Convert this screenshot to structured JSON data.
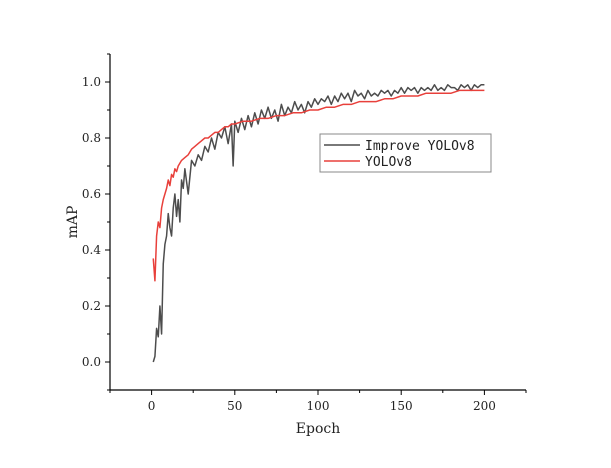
{
  "chart_data": {
    "type": "line",
    "xlabel": "Epoch",
    "ylabel": "mAP",
    "xlim": [
      -25,
      225
    ],
    "ylim": [
      -0.1,
      1.1
    ],
    "xticks": [
      0,
      50,
      100,
      150,
      200
    ],
    "yticks": [
      0.0,
      0.2,
      0.4,
      0.6,
      0.8,
      1.0
    ],
    "xtick_labels": [
      "0",
      "50",
      "100",
      "150",
      "200"
    ],
    "ytick_labels": [
      "0.0",
      "0.2",
      "0.4",
      "0.6",
      "0.8",
      "1.0"
    ],
    "grid": false,
    "legend_position": "upper-right-center",
    "series": [
      {
        "name": "Improve YOLOv8",
        "color": "#4d4d4d",
        "points": [
          [
            1,
            0.0
          ],
          [
            2,
            0.02
          ],
          [
            3,
            0.12
          ],
          [
            4,
            0.09
          ],
          [
            5,
            0.2
          ],
          [
            6,
            0.1
          ],
          [
            7,
            0.35
          ],
          [
            8,
            0.42
          ],
          [
            9,
            0.45
          ],
          [
            10,
            0.53
          ],
          [
            11,
            0.48
          ],
          [
            12,
            0.45
          ],
          [
            13,
            0.55
          ],
          [
            14,
            0.6
          ],
          [
            15,
            0.52
          ],
          [
            16,
            0.58
          ],
          [
            17,
            0.5
          ],
          [
            18,
            0.65
          ],
          [
            19,
            0.62
          ],
          [
            20,
            0.69
          ],
          [
            22,
            0.6
          ],
          [
            24,
            0.72
          ],
          [
            26,
            0.7
          ],
          [
            28,
            0.74
          ],
          [
            30,
            0.72
          ],
          [
            32,
            0.77
          ],
          [
            34,
            0.75
          ],
          [
            36,
            0.8
          ],
          [
            38,
            0.76
          ],
          [
            40,
            0.82
          ],
          [
            42,
            0.8
          ],
          [
            44,
            0.84
          ],
          [
            46,
            0.78
          ],
          [
            48,
            0.85
          ],
          [
            49,
            0.7
          ],
          [
            50,
            0.86
          ],
          [
            52,
            0.82
          ],
          [
            54,
            0.87
          ],
          [
            56,
            0.83
          ],
          [
            58,
            0.88
          ],
          [
            60,
            0.84
          ],
          [
            62,
            0.89
          ],
          [
            64,
            0.85
          ],
          [
            66,
            0.9
          ],
          [
            68,
            0.87
          ],
          [
            70,
            0.91
          ],
          [
            72,
            0.87
          ],
          [
            74,
            0.9
          ],
          [
            76,
            0.86
          ],
          [
            78,
            0.92
          ],
          [
            80,
            0.88
          ],
          [
            82,
            0.91
          ],
          [
            84,
            0.89
          ],
          [
            86,
            0.93
          ],
          [
            88,
            0.9
          ],
          [
            90,
            0.92
          ],
          [
            92,
            0.89
          ],
          [
            94,
            0.93
          ],
          [
            96,
            0.91
          ],
          [
            98,
            0.94
          ],
          [
            100,
            0.92
          ],
          [
            102,
            0.94
          ],
          [
            104,
            0.93
          ],
          [
            106,
            0.95
          ],
          [
            108,
            0.92
          ],
          [
            110,
            0.95
          ],
          [
            112,
            0.93
          ],
          [
            114,
            0.96
          ],
          [
            116,
            0.94
          ],
          [
            118,
            0.96
          ],
          [
            120,
            0.93
          ],
          [
            122,
            0.97
          ],
          [
            124,
            0.95
          ],
          [
            126,
            0.96
          ],
          [
            128,
            0.94
          ],
          [
            130,
            0.97
          ],
          [
            132,
            0.95
          ],
          [
            134,
            0.96
          ],
          [
            136,
            0.95
          ],
          [
            138,
            0.97
          ],
          [
            140,
            0.96
          ],
          [
            142,
            0.97
          ],
          [
            144,
            0.95
          ],
          [
            146,
            0.97
          ],
          [
            148,
            0.96
          ],
          [
            150,
            0.98
          ],
          [
            152,
            0.96
          ],
          [
            154,
            0.98
          ],
          [
            156,
            0.97
          ],
          [
            158,
            0.98
          ],
          [
            160,
            0.96
          ],
          [
            162,
            0.98
          ],
          [
            164,
            0.97
          ],
          [
            166,
            0.98
          ],
          [
            168,
            0.97
          ],
          [
            170,
            0.99
          ],
          [
            172,
            0.97
          ],
          [
            174,
            0.98
          ],
          [
            176,
            0.97
          ],
          [
            178,
            0.99
          ],
          [
            180,
            0.98
          ],
          [
            182,
            0.98
          ],
          [
            184,
            0.97
          ],
          [
            186,
            0.99
          ],
          [
            188,
            0.98
          ],
          [
            190,
            0.99
          ],
          [
            192,
            0.97
          ],
          [
            194,
            0.99
          ],
          [
            196,
            0.98
          ],
          [
            198,
            0.99
          ],
          [
            200,
            0.99
          ]
        ]
      },
      {
        "name": "YOLOv8",
        "color": "#e8403b",
        "points": [
          [
            1,
            0.37
          ],
          [
            2,
            0.29
          ],
          [
            3,
            0.45
          ],
          [
            4,
            0.5
          ],
          [
            5,
            0.48
          ],
          [
            6,
            0.55
          ],
          [
            7,
            0.58
          ],
          [
            8,
            0.6
          ],
          [
            9,
            0.62
          ],
          [
            10,
            0.65
          ],
          [
            11,
            0.63
          ],
          [
            12,
            0.67
          ],
          [
            13,
            0.66
          ],
          [
            14,
            0.69
          ],
          [
            15,
            0.68
          ],
          [
            16,
            0.7
          ],
          [
            18,
            0.72
          ],
          [
            20,
            0.73
          ],
          [
            22,
            0.74
          ],
          [
            24,
            0.76
          ],
          [
            26,
            0.77
          ],
          [
            28,
            0.78
          ],
          [
            30,
            0.79
          ],
          [
            32,
            0.8
          ],
          [
            34,
            0.8
          ],
          [
            36,
            0.81
          ],
          [
            38,
            0.82
          ],
          [
            40,
            0.82
          ],
          [
            42,
            0.83
          ],
          [
            44,
            0.84
          ],
          [
            46,
            0.84
          ],
          [
            48,
            0.85
          ],
          [
            50,
            0.85
          ],
          [
            55,
            0.86
          ],
          [
            60,
            0.86
          ],
          [
            65,
            0.87
          ],
          [
            70,
            0.87
          ],
          [
            75,
            0.88
          ],
          [
            80,
            0.88
          ],
          [
            85,
            0.89
          ],
          [
            90,
            0.89
          ],
          [
            95,
            0.9
          ],
          [
            100,
            0.9
          ],
          [
            105,
            0.91
          ],
          [
            110,
            0.91
          ],
          [
            115,
            0.92
          ],
          [
            120,
            0.92
          ],
          [
            125,
            0.93
          ],
          [
            130,
            0.93
          ],
          [
            135,
            0.93
          ],
          [
            140,
            0.94
          ],
          [
            145,
            0.94
          ],
          [
            150,
            0.95
          ],
          [
            155,
            0.95
          ],
          [
            160,
            0.95
          ],
          [
            165,
            0.96
          ],
          [
            170,
            0.96
          ],
          [
            175,
            0.96
          ],
          [
            180,
            0.96
          ],
          [
            185,
            0.97
          ],
          [
            190,
            0.97
          ],
          [
            195,
            0.97
          ],
          [
            200,
            0.97
          ]
        ]
      }
    ]
  }
}
